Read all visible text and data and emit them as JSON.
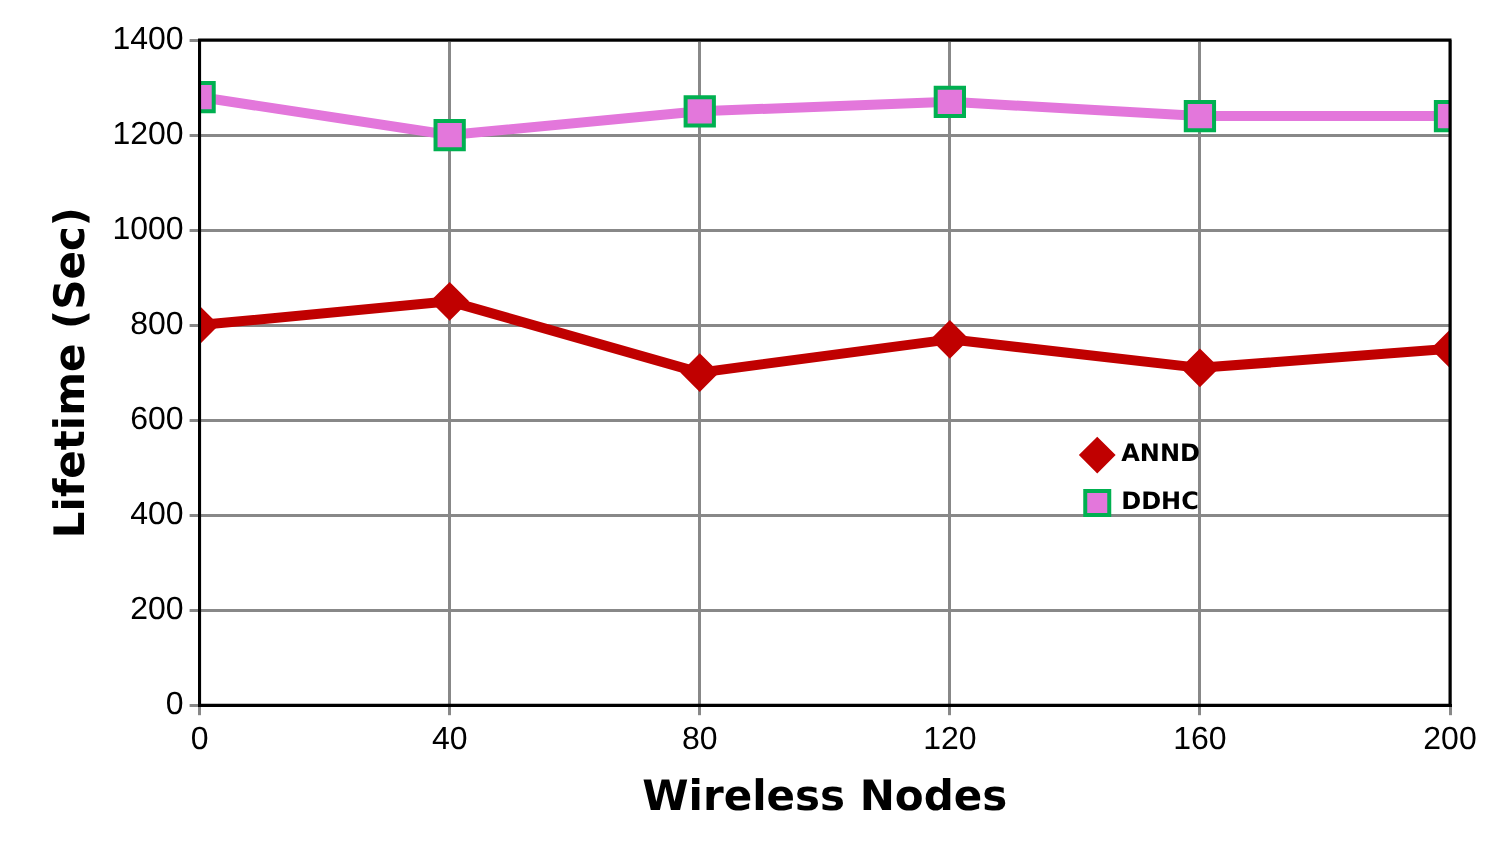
{
  "chart_data": {
    "type": "line",
    "xlabel": "Wireless Nodes",
    "ylabel": "Lifetime (Sec)",
    "x": [
      0,
      40,
      80,
      120,
      160,
      200
    ],
    "series": [
      {
        "name": "ANND",
        "color": "#c00000",
        "marker": "diamond",
        "values": [
          800,
          850,
          700,
          770,
          710,
          750
        ]
      },
      {
        "name": "DDHC",
        "color": "#e377db",
        "marker": "square",
        "values": [
          1280,
          1200,
          1250,
          1270,
          1240,
          1240
        ]
      }
    ],
    "xlim": [
      0,
      200
    ],
    "xticks": [
      0,
      40,
      80,
      120,
      160,
      200
    ],
    "ylim": [
      0,
      1400
    ],
    "yticks": [
      0,
      200,
      400,
      600,
      800,
      1000,
      1200,
      1400
    ],
    "grid": true,
    "legend": "right"
  }
}
